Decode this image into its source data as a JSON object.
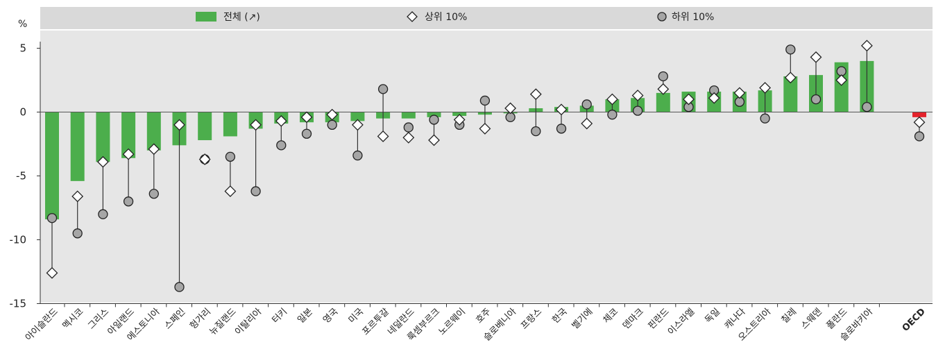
{
  "chart_data": {
    "type": "bar",
    "ylabel": "%",
    "ylim": [
      -15,
      5.5
    ],
    "yticks": [
      "5",
      "0",
      "-5",
      "-10",
      "-15"
    ],
    "grid": false,
    "legend_position": "top",
    "colors": {
      "bar": "#4cae4c",
      "bar_highlight": "#e3222b",
      "panel": "#e6e6e6",
      "legend_band": "#d9d9d9",
      "marker_circle": "#a6a6a6"
    },
    "categories": [
      "아이슬란드",
      "멕시코",
      "그리스",
      "아일랜드",
      "에스토니아",
      "스페인",
      "헝가리",
      "뉴질랜드",
      "이탈리아",
      "터키",
      "일본",
      "영국",
      "미국",
      "포르투갈",
      "네덜란드",
      "룩셈부르크",
      "노르웨이",
      "호주",
      "슬로베니아",
      "프랑스",
      "한국",
      "벨기에",
      "체코",
      "덴마크",
      "핀란드",
      "이스라엘",
      "독일",
      "캐나다",
      "오스트리아",
      "칠레",
      "스웨덴",
      "폴란드",
      "슬로바키아",
      "OECD"
    ],
    "series": [
      {
        "name": "전체 (↗)",
        "kind": "bar",
        "values": [
          -8.4,
          -5.4,
          -3.9,
          -3.6,
          -3.0,
          -2.6,
          -2.2,
          -1.9,
          -1.3,
          -0.9,
          -0.8,
          -0.8,
          -0.7,
          -0.5,
          -0.5,
          -0.4,
          -0.3,
          -0.2,
          -0.1,
          0.3,
          0.4,
          0.5,
          1.0,
          1.1,
          1.5,
          1.6,
          1.6,
          1.6,
          1.7,
          2.8,
          2.9,
          3.9,
          4.0,
          -0.4
        ]
      },
      {
        "name": "상위 10%",
        "kind": "diamond",
        "values": [
          -12.6,
          -6.6,
          -3.9,
          -3.3,
          -2.9,
          -1.0,
          -3.7,
          -6.2,
          -1.0,
          -0.7,
          -0.4,
          -0.2,
          -1.0,
          -1.9,
          -2.0,
          -2.2,
          -0.6,
          -1.3,
          0.3,
          1.4,
          0.2,
          -0.9,
          1.0,
          1.3,
          1.8,
          1.0,
          1.1,
          1.5,
          1.9,
          2.7,
          4.3,
          2.5,
          5.2,
          -0.8
        ]
      },
      {
        "name": "하위 10%",
        "kind": "circle",
        "values": [
          -8.3,
          -9.5,
          -8.0,
          -7.0,
          -6.4,
          -13.7,
          -3.7,
          -3.5,
          -6.2,
          -2.6,
          -1.7,
          -1.0,
          -3.4,
          1.8,
          -1.2,
          -0.6,
          -1.0,
          0.9,
          -0.4,
          -1.5,
          -1.3,
          0.6,
          -0.2,
          0.1,
          2.8,
          0.4,
          1.7,
          0.8,
          -0.5,
          4.9,
          1.0,
          3.2,
          0.4,
          -1.9
        ]
      }
    ]
  }
}
